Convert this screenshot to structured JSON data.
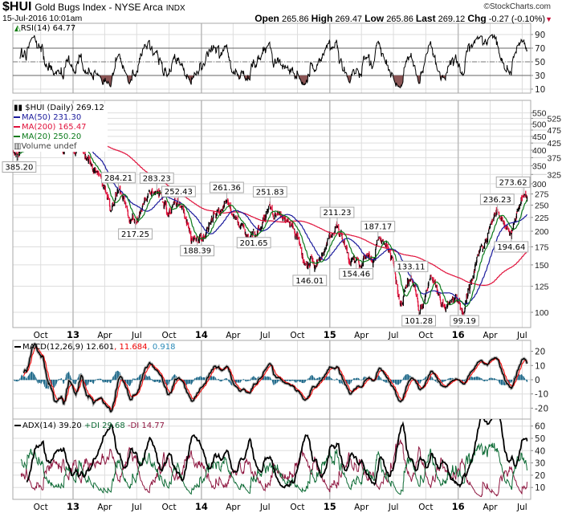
{
  "header": {
    "symbol": "$HUI",
    "name": "Gold Bugs Index - NYSE Arca",
    "exchange": "INDX",
    "copyright": "©StockCharts.com",
    "datetime": "15-Jul-2016 10:01am",
    "open_label": "Open",
    "open": "265.86",
    "high_label": "High",
    "high": "269.47",
    "low_label": "Low",
    "low": "265.86",
    "last_label": "Last",
    "last": "269.12",
    "chg_label": "Chg",
    "chg": "-0.27 (-0.10%)",
    "chg_direction": "down"
  },
  "colors": {
    "up_bar": "#000000",
    "down_bar": "#e0103a",
    "ma50": "#1a1a9c",
    "ma200": "#e0103a",
    "ma20": "#0a7a1a",
    "macd_hist": "#236c8c",
    "macd_signal": "#ff0000",
    "plus_di": "#0d6b35",
    "minus_di": "#8e1740",
    "rsi_fill": "#8b5555",
    "grid": "#dddddd"
  },
  "x_ticks": [
    {
      "label": "Oct",
      "date": "2012-10-01",
      "bold": false
    },
    {
      "label": "13",
      "date": "2013-01-01",
      "bold": true
    },
    {
      "label": "Apr",
      "date": "2013-04-01",
      "bold": false
    },
    {
      "label": "Jul",
      "date": "2013-07-01",
      "bold": false
    },
    {
      "label": "Oct",
      "date": "2013-10-01",
      "bold": false
    },
    {
      "label": "14",
      "date": "2014-01-01",
      "bold": true
    },
    {
      "label": "Apr",
      "date": "2014-04-01",
      "bold": false
    },
    {
      "label": "Jul",
      "date": "2014-07-01",
      "bold": false
    },
    {
      "label": "Oct",
      "date": "2014-10-01",
      "bold": false
    },
    {
      "label": "15",
      "date": "2015-01-01",
      "bold": true
    },
    {
      "label": "Apr",
      "date": "2015-04-01",
      "bold": false
    },
    {
      "label": "Jul",
      "date": "2015-07-01",
      "bold": false
    },
    {
      "label": "Oct",
      "date": "2015-10-01",
      "bold": false
    },
    {
      "label": "16",
      "date": "2016-01-01",
      "bold": true
    },
    {
      "label": "Apr",
      "date": "2016-04-01",
      "bold": false
    },
    {
      "label": "Jul",
      "date": "2016-07-01",
      "bold": false
    }
  ],
  "chart_data": [
    {
      "type": "line",
      "panel": "rsi",
      "legend": "RSI(14) 64.77",
      "ylim": [
        0,
        100
      ],
      "yticks": [
        10,
        30,
        50,
        70,
        90
      ],
      "reference_lines": [
        30,
        50,
        70
      ]
    },
    {
      "type": "candlestick",
      "panel": "price",
      "legend": "$HUI (Daily) 269.12",
      "scale": "log",
      "ylim": [
        90,
        560
      ],
      "yticks": [
        100,
        125,
        150,
        175,
        200,
        225,
        250,
        275,
        300,
        325,
        350,
        375,
        400,
        425,
        450,
        475,
        500,
        525,
        550
      ],
      "overlays": [
        {
          "name": "MA(50)",
          "value": "231.30"
        },
        {
          "name": "MA(200)",
          "value": "165.47"
        },
        {
          "name": "MA(20)",
          "value": "250.20"
        }
      ],
      "volume_legend": "Volume undef",
      "points": [
        {
          "date": "2012-07-16",
          "value": 395
        },
        {
          "date": "2012-07-25",
          "value": 385.2,
          "label": "385.20",
          "kind": "low"
        },
        {
          "date": "2012-08-15",
          "value": 410
        },
        {
          "date": "2012-10-05",
          "value": 525
        },
        {
          "date": "2012-12-20",
          "value": 440
        },
        {
          "date": "2013-01-20",
          "value": 425
        },
        {
          "date": "2013-02-20",
          "value": 355
        },
        {
          "date": "2013-03-12",
          "value": 330
        },
        {
          "date": "2013-04-16",
          "value": 245
        },
        {
          "date": "2013-05-10",
          "value": 284.21,
          "label": "284.21",
          "kind": "high"
        },
        {
          "date": "2013-06-27",
          "value": 217.25,
          "label": "217.25",
          "kind": "low"
        },
        {
          "date": "2013-08-27",
          "value": 283.23,
          "label": "283.23",
          "kind": "high"
        },
        {
          "date": "2013-10-01",
          "value": 232
        },
        {
          "date": "2013-10-28",
          "value": 252.43,
          "label": "252.43",
          "kind": "high"
        },
        {
          "date": "2013-12-20",
          "value": 188.39,
          "label": "188.39",
          "kind": "low"
        },
        {
          "date": "2014-03-14",
          "value": 261.36,
          "label": "261.36",
          "kind": "high"
        },
        {
          "date": "2014-05-30",
          "value": 201.65,
          "label": "201.65",
          "kind": "low"
        },
        {
          "date": "2014-07-15",
          "value": 251.83,
          "label": "251.83",
          "kind": "high"
        },
        {
          "date": "2014-09-15",
          "value": 210
        },
        {
          "date": "2014-11-05",
          "value": 146.01,
          "label": "146.01",
          "kind": "low"
        },
        {
          "date": "2014-12-15",
          "value": 168
        },
        {
          "date": "2015-01-22",
          "value": 211.23,
          "label": "211.23",
          "kind": "high"
        },
        {
          "date": "2015-03-17",
          "value": 154.46,
          "label": "154.46",
          "kind": "low"
        },
        {
          "date": "2015-05-18",
          "value": 187.17,
          "label": "187.17",
          "kind": "high"
        },
        {
          "date": "2015-06-30",
          "value": 158
        },
        {
          "date": "2015-07-24",
          "value": 107
        },
        {
          "date": "2015-08-20",
          "value": 133.11,
          "label": "133.11",
          "kind": "high"
        },
        {
          "date": "2015-09-11",
          "value": 101.28,
          "label": "101.28",
          "kind": "low"
        },
        {
          "date": "2015-10-15",
          "value": 138
        },
        {
          "date": "2015-11-25",
          "value": 104
        },
        {
          "date": "2015-12-22",
          "value": 112
        },
        {
          "date": "2016-01-19",
          "value": 99.19,
          "label": "99.19",
          "kind": "low"
        },
        {
          "date": "2016-03-01",
          "value": 170
        },
        {
          "date": "2016-04-21",
          "value": 236.23,
          "label": "236.23",
          "kind": "high"
        },
        {
          "date": "2016-05-31",
          "value": 194.64,
          "label": "194.64",
          "kind": "low"
        },
        {
          "date": "2016-07-06",
          "value": 273.62,
          "label": "273.62",
          "kind": "high"
        },
        {
          "date": "2016-07-15",
          "value": 269.12
        }
      ]
    },
    {
      "type": "line",
      "panel": "macd",
      "legend_name": "MACD(12,26,9)",
      "macd": "12.601",
      "signal": "11.684",
      "histogram": "0.918",
      "ylim": [
        -27,
        27
      ],
      "yticks": [
        -20,
        -10,
        0,
        10,
        20
      ]
    },
    {
      "type": "line",
      "panel": "adx",
      "legend_adx": "ADX(14) 39.20",
      "legend_pdi": "+DI 29.68",
      "legend_mdi": "-DI 14.77",
      "ylim": [
        0,
        65
      ],
      "yticks": [
        10,
        20,
        30,
        40,
        50,
        60
      ]
    }
  ]
}
